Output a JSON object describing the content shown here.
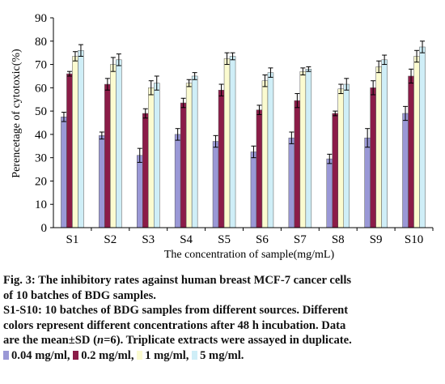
{
  "chart_data": {
    "type": "bar",
    "xlabel": "The concentration of sample(mg/mL)",
    "ylabel": "Perencetage of cytotoxic(%)",
    "ylim": [
      0,
      90
    ],
    "yticks": [
      0,
      10,
      20,
      30,
      40,
      50,
      60,
      70,
      80,
      90
    ],
    "grid": false,
    "error_bars": true,
    "categories": [
      "S1",
      "S2",
      "S3",
      "S4",
      "S5",
      "S6",
      "S7",
      "S8",
      "S9",
      "S10"
    ],
    "series": [
      {
        "name": "0.04 mg/ml",
        "color": "#9a98d6",
        "values": [
          47.5,
          39.5,
          31,
          40,
          37,
          32.5,
          38.5,
          29.5,
          38.5,
          49
        ],
        "errors": [
          2,
          1.5,
          3,
          2.5,
          2.5,
          2.5,
          2.5,
          2,
          4,
          3
        ]
      },
      {
        "name": "0.2 mg/ml",
        "color": "#8b1c48",
        "values": [
          66,
          61.5,
          49,
          53.5,
          59,
          50.5,
          54.5,
          49,
          60,
          65
        ],
        "errors": [
          1,
          2.5,
          2,
          2,
          2.5,
          2,
          3,
          1,
          3,
          3
        ]
      },
      {
        "name": "1 mg/ml",
        "color": "#fbfbd0",
        "values": [
          73.5,
          70,
          60,
          62,
          72.5,
          63,
          67,
          59.5,
          69,
          73.5
        ],
        "errors": [
          2,
          3,
          3,
          1.5,
          2.5,
          2.5,
          1.5,
          2,
          2.5,
          2.5
        ]
      },
      {
        "name": "5 mg/ml",
        "color": "#cfeef7",
        "values": [
          76,
          72,
          62,
          65,
          73.5,
          66.5,
          68,
          61.5,
          72,
          77.5
        ],
        "errors": [
          2.5,
          2.5,
          3,
          1.5,
          1.5,
          2,
          1,
          2.5,
          2,
          2.5
        ]
      }
    ]
  },
  "caption": {
    "fig_line1": "Fig. 3: The inhibitory rates against human breast MCF-7 cancer cells",
    "fig_line2": "of 10 batches of BDG samples.",
    "desc_line1": "S1-S10: 10 batches of BDG samples from different sources. Different",
    "desc_line2": "colors represent different concentrations after 48 h incubation. Data",
    "desc_line3_a": "are the mean±SD (",
    "desc_line3_n": "n",
    "desc_line3_b": "=6). Triplicate extracts were assayed in duplicate.",
    "legend_sep": ",",
    "legend_end": "."
  }
}
